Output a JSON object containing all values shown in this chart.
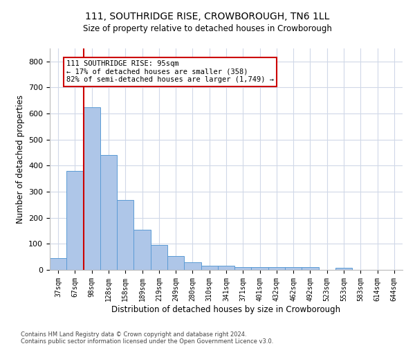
{
  "title": "111, SOUTHRIDGE RISE, CROWBOROUGH, TN6 1LL",
  "subtitle": "Size of property relative to detached houses in Crowborough",
  "xlabel": "Distribution of detached houses by size in Crowborough",
  "ylabel": "Number of detached properties",
  "footnote1": "Contains HM Land Registry data © Crown copyright and database right 2024.",
  "footnote2": "Contains public sector information licensed under the Open Government Licence v3.0.",
  "categories": [
    "37sqm",
    "67sqm",
    "98sqm",
    "128sqm",
    "158sqm",
    "189sqm",
    "219sqm",
    "249sqm",
    "280sqm",
    "310sqm",
    "341sqm",
    "371sqm",
    "401sqm",
    "432sqm",
    "462sqm",
    "492sqm",
    "523sqm",
    "553sqm",
    "583sqm",
    "614sqm",
    "644sqm"
  ],
  "values": [
    45,
    380,
    625,
    440,
    268,
    155,
    95,
    53,
    28,
    15,
    15,
    10,
    10,
    10,
    10,
    10,
    0,
    8,
    0,
    0,
    0
  ],
  "bar_color": "#aec6e8",
  "bar_edge_color": "#5b9bd5",
  "grid_color": "#d0d8e8",
  "background_color": "#ffffff",
  "property_line_color": "#cc0000",
  "annotation_text": "111 SOUTHRIDGE RISE: 95sqm\n← 17% of detached houses are smaller (358)\n82% of semi-detached houses are larger (1,749) →",
  "annotation_box_color": "#cc0000",
  "ylim": [
    0,
    850
  ],
  "yticks": [
    0,
    100,
    200,
    300,
    400,
    500,
    600,
    700,
    800
  ]
}
